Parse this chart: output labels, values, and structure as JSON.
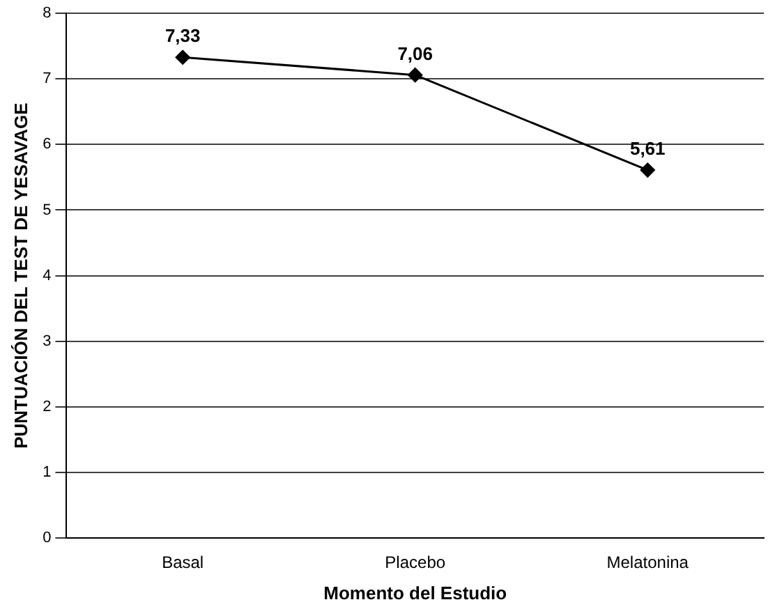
{
  "chart_data": {
    "type": "line",
    "xlabel": "Momento del Estudio",
    "ylabel": "PUNTUACIÓN DEL TEST DE YESAVAGE",
    "categories": [
      "Basal",
      "Placebo",
      "Melatonina"
    ],
    "series": [
      {
        "color": "#000000",
        "values": [
          7.33,
          7.06,
          5.61
        ],
        "value_labels": [
          "7,33",
          "7,06",
          "5,61"
        ]
      }
    ],
    "ylim": [
      0,
      8
    ],
    "yticks": [
      0,
      1,
      2,
      3,
      4,
      5,
      6,
      7,
      8
    ],
    "grid": "y",
    "marker": "diamond",
    "line_style": "solid",
    "legend": false
  }
}
